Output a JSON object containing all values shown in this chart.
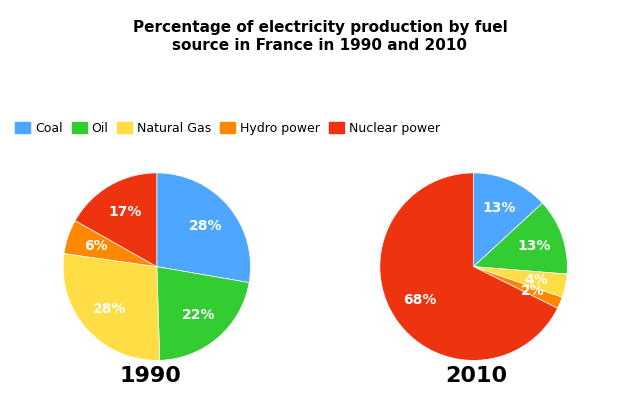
{
  "title": "Percentage of electricity production by fuel\nsource in France in 1990 and 2010",
  "title_fontsize": 11,
  "categories": [
    "Coal",
    "Oil",
    "Natural Gas",
    "Hydro power",
    "Nuclear power"
  ],
  "colors": [
    "#4da6ff",
    "#33cc33",
    "#ffdd44",
    "#ff8800",
    "#ee3311"
  ],
  "data_1990": {
    "year": "1990",
    "values": [
      28,
      22,
      28,
      6,
      17
    ],
    "start_angle": 90
  },
  "data_2010": {
    "year": "2010",
    "values": [
      13,
      13,
      4,
      2,
      67
    ],
    "start_angle": 90
  },
  "label_color": "white",
  "label_fontsize": 10,
  "year_fontsize": 16,
  "legend_fontsize": 9,
  "background_color": "#ffffff"
}
